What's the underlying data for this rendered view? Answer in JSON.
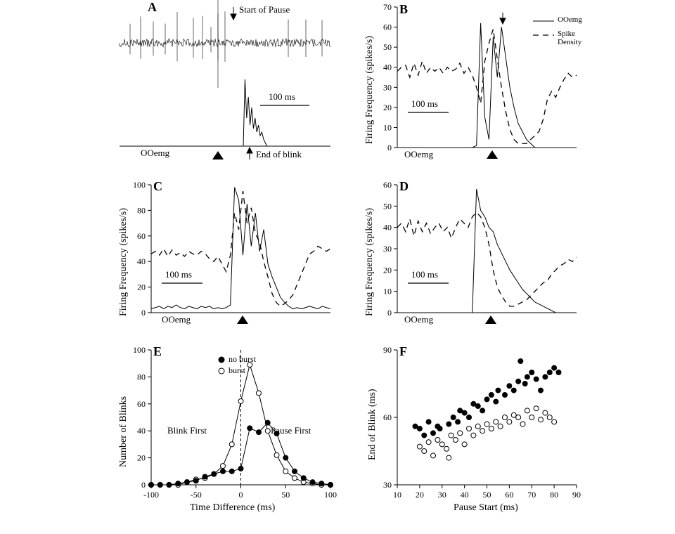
{
  "panelA": {
    "label": "A",
    "annotations": {
      "startPause": "Start of Pause",
      "endBlink": "End of blink",
      "scaleBar": "100 ms",
      "emg": "OOemg"
    }
  },
  "panelB": {
    "label": "B",
    "ylabel": "Firing Frequency (spikes/s)",
    "yticks": [
      0,
      10,
      20,
      30,
      40,
      50,
      60,
      70
    ],
    "ylim": [
      0,
      70
    ],
    "legend": {
      "emg": "OOemg",
      "density": "Spike Density"
    },
    "scaleBar": "100 ms",
    "emgLabel": "OOemg",
    "density": [
      38,
      40,
      41,
      35,
      42,
      36,
      43,
      37,
      40,
      38,
      40,
      37,
      40,
      38,
      39,
      42,
      37,
      40,
      36,
      30,
      22,
      43,
      52,
      59,
      44,
      30,
      18,
      9,
      4,
      2,
      2,
      2,
      4,
      6,
      8,
      14,
      24,
      28,
      25,
      30,
      34,
      37,
      35,
      36
    ],
    "emg": [
      0,
      0,
      0,
      0,
      0,
      0,
      0,
      0,
      0,
      0,
      0,
      0,
      0,
      0,
      0,
      0,
      0,
      0,
      0,
      1,
      62,
      15,
      4,
      55,
      35,
      60,
      45,
      30,
      20,
      12,
      8,
      4,
      2,
      0,
      0,
      0,
      0,
      0,
      0,
      0,
      0,
      0,
      0,
      0
    ]
  },
  "panelC": {
    "label": "C",
    "ylabel": "Firing Frequency (spikes/s)",
    "yticks": [
      0,
      20,
      40,
      60,
      80,
      100
    ],
    "ylim": [
      0,
      100
    ],
    "scaleBar": "100 ms",
    "emgLabel": "OOemg",
    "density": [
      46,
      48,
      45,
      50,
      44,
      49,
      45,
      47,
      44,
      48,
      46,
      45,
      48,
      46,
      42,
      40,
      44,
      38,
      32,
      45,
      78,
      65,
      95,
      70,
      82,
      62,
      55,
      40,
      28,
      15,
      8,
      5,
      7,
      10,
      14,
      22,
      30,
      38,
      46,
      48,
      52,
      50,
      48,
      50
    ],
    "emg": [
      3,
      4,
      5,
      3,
      5,
      4,
      6,
      4,
      3,
      5,
      4,
      3,
      5,
      4,
      5,
      3,
      4,
      3,
      4,
      6,
      98,
      88,
      45,
      85,
      52,
      78,
      48,
      65,
      38,
      28,
      20,
      12,
      8,
      5,
      3,
      4,
      3,
      4,
      5,
      4,
      3,
      5,
      4,
      3
    ]
  },
  "panelD": {
    "label": "D",
    "ylabel": "Firing Frequency (spikes/s)",
    "yticks": [
      0,
      10,
      20,
      30,
      40,
      50,
      60
    ],
    "ylim": [
      0,
      60
    ],
    "scaleBar": "100 ms",
    "emgLabel": "OOemg",
    "density": [
      40,
      42,
      38,
      44,
      36,
      43,
      38,
      42,
      37,
      40,
      42,
      38,
      40,
      35,
      40,
      44,
      42,
      40,
      45,
      47,
      45,
      40,
      32,
      20,
      12,
      8,
      5,
      3,
      3,
      4,
      5,
      6,
      8,
      10,
      12,
      14,
      15,
      18,
      20,
      22,
      23,
      25,
      24,
      26
    ],
    "emg": [
      0,
      0,
      0,
      0,
      0,
      0,
      0,
      0,
      0,
      0,
      0,
      0,
      0,
      0,
      0,
      0,
      0,
      0,
      0,
      58,
      48,
      45,
      40,
      38,
      32,
      28,
      24,
      20,
      17,
      14,
      11,
      9,
      7,
      5,
      4,
      3,
      2,
      1,
      0,
      0,
      0,
      0,
      0,
      0
    ]
  },
  "panelE": {
    "label": "E",
    "ylabel": "Number of Blinks",
    "xlabel": "Time Difference (ms)",
    "yticks": [
      0,
      20,
      40,
      60,
      80,
      100
    ],
    "xticks": [
      -100,
      -50,
      0,
      50,
      100
    ],
    "ylim": [
      0,
      100
    ],
    "xlim": [
      -100,
      100
    ],
    "legend": {
      "noburst": "no burst",
      "burst": "burst"
    },
    "annotations": {
      "blinkFirst": "Blink First",
      "pauseFirst": "Pause First"
    },
    "burst": {
      "x": [
        -100,
        -90,
        -80,
        -70,
        -60,
        -50,
        -40,
        -30,
        -20,
        -10,
        0,
        10,
        20,
        30,
        40,
        50,
        60,
        70,
        80,
        90,
        100
      ],
      "y": [
        0,
        0,
        0,
        0,
        2,
        4,
        5,
        8,
        14,
        30,
        62,
        89,
        68,
        40,
        22,
        10,
        5,
        2,
        1,
        0,
        0
      ]
    },
    "noburst": {
      "x": [
        -100,
        -90,
        -80,
        -70,
        -60,
        -50,
        -40,
        -30,
        -20,
        -10,
        0,
        10,
        20,
        30,
        40,
        50,
        60,
        70,
        80,
        90,
        100
      ],
      "y": [
        0,
        0,
        0,
        1,
        2,
        3,
        6,
        8,
        10,
        10,
        12,
        42,
        39,
        46,
        38,
        20,
        10,
        5,
        2,
        1,
        0
      ]
    }
  },
  "panelF": {
    "label": "F",
    "ylabel": "End of Blink (ms)",
    "xlabel": "Pause Start (ms)",
    "yticks": [
      30,
      60,
      90
    ],
    "xticks": [
      10,
      20,
      30,
      40,
      50,
      60,
      70,
      80,
      90
    ],
    "ylim": [
      30,
      90
    ],
    "xlim": [
      10,
      90
    ],
    "filled": [
      [
        18,
        56
      ],
      [
        20,
        55
      ],
      [
        22,
        52
      ],
      [
        24,
        58
      ],
      [
        26,
        53
      ],
      [
        28,
        56
      ],
      [
        29,
        55
      ],
      [
        33,
        57
      ],
      [
        35,
        60
      ],
      [
        37,
        58
      ],
      [
        38,
        63
      ],
      [
        40,
        62
      ],
      [
        42,
        60
      ],
      [
        44,
        66
      ],
      [
        46,
        65
      ],
      [
        48,
        63
      ],
      [
        50,
        68
      ],
      [
        52,
        70
      ],
      [
        54,
        67
      ],
      [
        55,
        72
      ],
      [
        58,
        70
      ],
      [
        60,
        74
      ],
      [
        62,
        72
      ],
      [
        64,
        76
      ],
      [
        65,
        85
      ],
      [
        67,
        75
      ],
      [
        68,
        78
      ],
      [
        70,
        80
      ],
      [
        72,
        77
      ],
      [
        74,
        72
      ],
      [
        76,
        78
      ],
      [
        78,
        80
      ],
      [
        80,
        82
      ],
      [
        82,
        80
      ]
    ],
    "open": [
      [
        20,
        47
      ],
      [
        22,
        45
      ],
      [
        24,
        49
      ],
      [
        26,
        43
      ],
      [
        28,
        50
      ],
      [
        30,
        48
      ],
      [
        32,
        46
      ],
      [
        34,
        52
      ],
      [
        33,
        42
      ],
      [
        36,
        50
      ],
      [
        38,
        53
      ],
      [
        40,
        48
      ],
      [
        42,
        55
      ],
      [
        44,
        52
      ],
      [
        46,
        56
      ],
      [
        48,
        54
      ],
      [
        50,
        57
      ],
      [
        52,
        55
      ],
      [
        54,
        58
      ],
      [
        56,
        56
      ],
      [
        58,
        60
      ],
      [
        60,
        58
      ],
      [
        62,
        61
      ],
      [
        64,
        60
      ],
      [
        66,
        57
      ],
      [
        68,
        63
      ],
      [
        70,
        60
      ],
      [
        72,
        64
      ],
      [
        74,
        59
      ],
      [
        76,
        62
      ],
      [
        78,
        60
      ],
      [
        80,
        58
      ]
    ]
  }
}
